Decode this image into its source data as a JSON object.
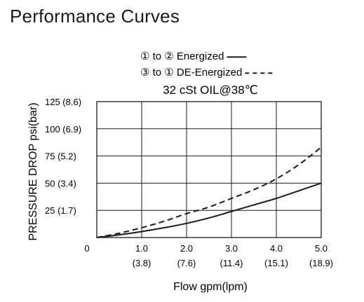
{
  "page": {
    "title": "Performance Curves"
  },
  "chart_data": {
    "type": "line",
    "conditions": "32 cSt OIL@38℃",
    "xlabel": "Flow gpm(lpm)",
    "ylabel": "PRESSURE DROP psi(bar)",
    "xlim": [
      0,
      5
    ],
    "ylim": [
      0,
      125
    ],
    "grid": true,
    "legend_position": "top-center",
    "x_ticks": [
      {
        "value": 0,
        "label": "0",
        "sublabel": ""
      },
      {
        "value": 1,
        "label": "1.0",
        "sublabel": "(3.8)"
      },
      {
        "value": 2,
        "label": "2.0",
        "sublabel": "(7.6)"
      },
      {
        "value": 3,
        "label": "3.0",
        "sublabel": "(11.4)"
      },
      {
        "value": 4,
        "label": "4.0",
        "sublabel": "(15.1)"
      },
      {
        "value": 5,
        "label": "5.0",
        "sublabel": "(18.9)"
      }
    ],
    "y_ticks": [
      {
        "value": 25,
        "label": "25 (1.7)"
      },
      {
        "value": 50,
        "label": "50 (3.4)"
      },
      {
        "value": 75,
        "label": "75 (5.2)"
      },
      {
        "value": 100,
        "label": "100 (6.9)"
      },
      {
        "value": 125,
        "label": "125 (8.6)"
      }
    ],
    "series": [
      {
        "name": "① to ② Energized",
        "style": "solid",
        "color": "#1a1a1a",
        "x": [
          0,
          0.5,
          1,
          1.5,
          2,
          2.5,
          3,
          3.5,
          4,
          4.5,
          5
        ],
        "y": [
          0,
          2.5,
          5.5,
          9,
          13,
          18,
          24,
          30,
          36,
          43,
          50
        ]
      },
      {
        "name": "③ to ① DE-Energized",
        "style": "dashed",
        "color": "#1a1a1a",
        "x": [
          0,
          0.5,
          1,
          1.5,
          2,
          2.5,
          3,
          3.5,
          4,
          4.5,
          5
        ],
        "y": [
          0,
          4,
          9,
          15,
          22,
          28,
          36,
          44,
          54,
          67,
          83
        ]
      }
    ]
  }
}
